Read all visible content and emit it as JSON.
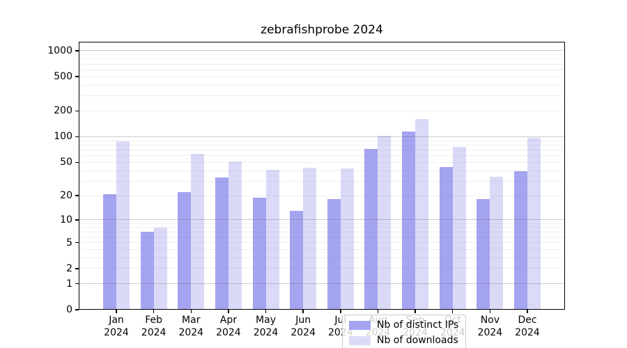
{
  "title": "zebrafishprobe 2024",
  "chart_data": {
    "type": "bar",
    "title": "zebrafishprobe 2024",
    "categories": [
      "Jan",
      "Feb",
      "Mar",
      "Apr",
      "May",
      "Jun",
      "Jul",
      "Aug",
      "Sep",
      "Oct",
      "Nov",
      "Dec"
    ],
    "year": "2024",
    "series": [
      {
        "name": "Nb of distinct IPs",
        "color": "#a4a4f1",
        "values": [
          21,
          7,
          22,
          33,
          19,
          13,
          18,
          72,
          115,
          44,
          18,
          39
        ]
      },
      {
        "name": "Nb of downloads",
        "color": "#dadaf8",
        "values": [
          88,
          8,
          63,
          51,
          41,
          43,
          42,
          102,
          160,
          76,
          34,
          97
        ]
      }
    ],
    "yscale": "log10(value+1)",
    "yticks": [
      0,
      1,
      2,
      5,
      10,
      20,
      50,
      100,
      200,
      500,
      1000
    ],
    "ylim": [
      0,
      1300
    ],
    "grid": {
      "major_lines": [
        1,
        10,
        100,
        1000
      ],
      "minor_lines": [
        2,
        3,
        4,
        5,
        6,
        7,
        8,
        9,
        20,
        30,
        40,
        50,
        60,
        70,
        80,
        90,
        200,
        300,
        400,
        500,
        600,
        700,
        800,
        900
      ],
      "major_color": "#c6c6c6",
      "minor_color": "#ebebeb"
    },
    "legend_position": "lower center",
    "xlabel": "",
    "ylabel": ""
  }
}
